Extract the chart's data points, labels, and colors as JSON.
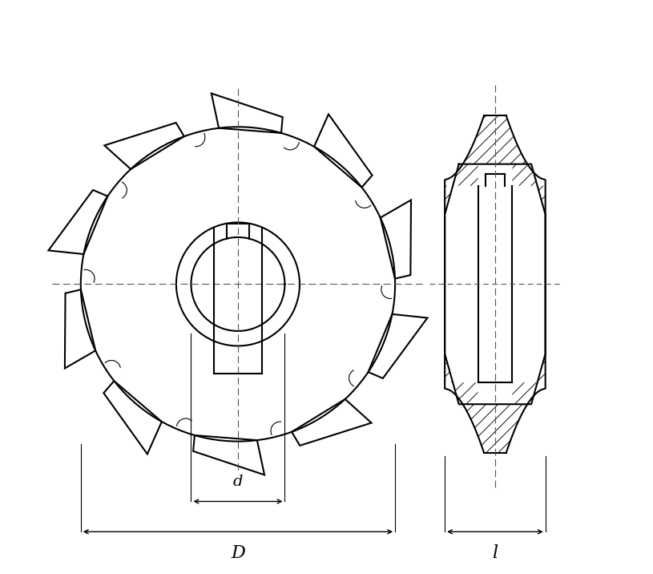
{
  "bg_color": "#ffffff",
  "line_color": "#000000",
  "dash_color": "#555555",
  "figsize": [
    8.15,
    7.16
  ],
  "dpi": 100,
  "dim_d_label": "d",
  "dim_D_label": "D",
  "dim_l_label": "l"
}
